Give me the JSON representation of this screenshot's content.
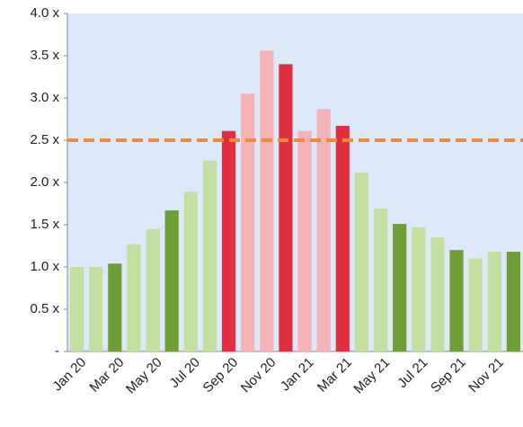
{
  "chart_data": {
    "type": "bar",
    "categories": [
      "Jan 20",
      null,
      "Mar 20",
      null,
      "May 20",
      null,
      "Jul 20",
      null,
      "Sep 20",
      null,
      "Nov 20",
      null,
      "Jan 21",
      null,
      "Mar 21",
      null,
      "May 21",
      null,
      "Jul 21",
      null,
      "Sep 21",
      null,
      "Nov 21",
      null
    ],
    "values": [
      1.0,
      1.0,
      1.04,
      1.27,
      1.45,
      1.67,
      1.89,
      2.26,
      2.61,
      3.05,
      3.56,
      3.4,
      2.61,
      2.87,
      2.67,
      2.12,
      1.69,
      1.51,
      1.47,
      1.35,
      1.2,
      1.1,
      1.18,
      1.18
    ],
    "colors": [
      "#c4e0a0",
      "#c4e0a0",
      "#6e9f35",
      "#c4e0a0",
      "#c4e0a0",
      "#6e9f35",
      "#c4e0a0",
      "#c4e0a0",
      "#e0303f",
      "#f5b3b8",
      "#f5b3b8",
      "#e0303f",
      "#f5b3b8",
      "#f5b3b8",
      "#e0303f",
      "#c4e0a0",
      "#c4e0a0",
      "#6e9f35",
      "#c4e0a0",
      "#c4e0a0",
      "#6e9f35",
      "#c4e0a0",
      "#c4e0a0",
      "#6e9f35"
    ],
    "ylim": [
      0,
      4
    ],
    "yticks": [
      {
        "value": 0,
        "label": "-"
      },
      {
        "value": 0.5,
        "label": "0.5 x"
      },
      {
        "value": 1,
        "label": "1.0 x"
      },
      {
        "value": 1.5,
        "label": "1.5 x"
      },
      {
        "value": 2,
        "label": "2.0 x"
      },
      {
        "value": 2.5,
        "label": "2.5 x"
      },
      {
        "value": 3,
        "label": "3.0 x"
      },
      {
        "value": 3.5,
        "label": "3.5 x"
      },
      {
        "value": 4,
        "label": "4.0 x"
      }
    ],
    "reference_line": {
      "value": 2.5,
      "color": "#ee8a3a"
    },
    "plot_background": "#dde8fb"
  }
}
